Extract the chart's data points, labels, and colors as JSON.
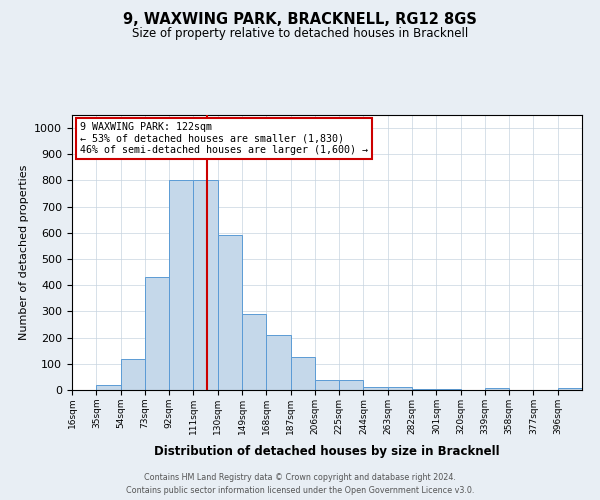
{
  "title": "9, WAXWING PARK, BRACKNELL, RG12 8GS",
  "subtitle": "Size of property relative to detached houses in Bracknell",
  "xlabel": "Distribution of detached houses by size in Bracknell",
  "ylabel": "Number of detached properties",
  "bar_color": "#c5d8ea",
  "bar_edge_color": "#5b9bd5",
  "bins": [
    16,
    35,
    54,
    73,
    92,
    111,
    130,
    149,
    168,
    187,
    206,
    225,
    244,
    263,
    282,
    301,
    320,
    339,
    358,
    377,
    396
  ],
  "bar_heights": [
    0,
    20,
    120,
    430,
    800,
    800,
    590,
    290,
    210,
    125,
    40,
    40,
    10,
    10,
    5,
    5,
    0,
    8,
    0,
    0,
    8
  ],
  "vline_x": 122,
  "vline_color": "#cc0000",
  "annotation_title": "9 WAXWING PARK: 122sqm",
  "annotation_line1": "← 53% of detached houses are smaller (1,830)",
  "annotation_line2": "46% of semi-detached houses are larger (1,600) →",
  "annotation_box_color": "#ffffff",
  "annotation_box_edge": "#cc0000",
  "ylim": [
    0,
    1050
  ],
  "yticks": [
    0,
    100,
    200,
    300,
    400,
    500,
    600,
    700,
    800,
    900,
    1000
  ],
  "footnote1": "Contains HM Land Registry data © Crown copyright and database right 2024.",
  "footnote2": "Contains public sector information licensed under the Open Government Licence v3.0.",
  "bg_color": "#e8eef4",
  "plot_bg_color": "#ffffff",
  "grid_color": "#c8d4e0"
}
